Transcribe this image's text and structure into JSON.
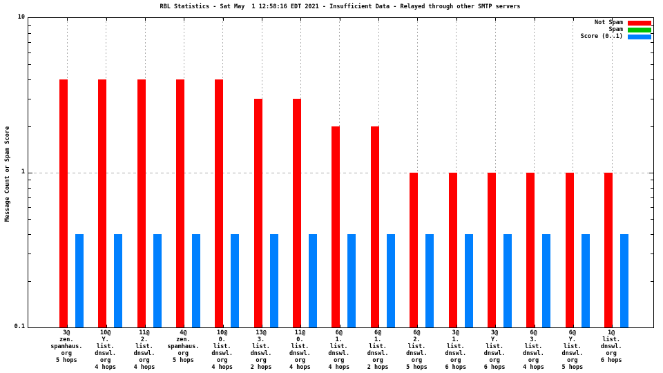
{
  "title": "RBL Statistics - Sat May  1 12:58:16 EDT 2021 - Insufficient Data - Relayed through other SMTP servers",
  "chart_data": {
    "type": "bar",
    "title": "RBL Statistics - Sat May  1 12:58:16 EDT 2021 - Insufficient Data - Relayed through other SMTP servers",
    "xlabel": "",
    "ylabel": "Message Count or Spam Score",
    "y_scale": "log",
    "ylim": [
      0.1,
      10
    ],
    "grid": true,
    "grid_color": "#aaaaaa",
    "legend_position": "top-right",
    "y_ticks": [
      {
        "label": "10",
        "value": 10
      },
      {
        "label": "1",
        "value": 1
      },
      {
        "label": "0.1",
        "value": 0.1
      }
    ],
    "categories": [
      [
        "3@",
        "zen.",
        "spamhaus.",
        "org",
        "5 hops"
      ],
      [
        "10@",
        "Y.",
        "list.",
        "dnswl.",
        "org",
        "4 hops"
      ],
      [
        "11@",
        "2.",
        "list.",
        "dnswl.",
        "org",
        "4 hops"
      ],
      [
        "4@",
        "zen.",
        "spamhaus.",
        "org",
        "5 hops"
      ],
      [
        "10@",
        "0.",
        "list.",
        "dnswl.",
        "org",
        "4 hops"
      ],
      [
        "13@",
        "3.",
        "list.",
        "dnswl.",
        "org",
        "2 hops"
      ],
      [
        "11@",
        "0.",
        "list.",
        "dnswl.",
        "org",
        "4 hops"
      ],
      [
        "6@",
        "1.",
        "list.",
        "dnswl.",
        "org",
        "4 hops"
      ],
      [
        "6@",
        "1.",
        "list.",
        "dnswl.",
        "org",
        "2 hops"
      ],
      [
        "6@",
        "2.",
        "list.",
        "dnswl.",
        "org",
        "5 hops"
      ],
      [
        "3@",
        "1.",
        "list.",
        "dnswl.",
        "org",
        "6 hops"
      ],
      [
        "3@",
        "Y.",
        "list.",
        "dnswl.",
        "org",
        "6 hops"
      ],
      [
        "6@",
        "3.",
        "list.",
        "dnswl.",
        "org",
        "4 hops"
      ],
      [
        "6@",
        "Y.",
        "list.",
        "dnswl.",
        "org",
        "5 hops"
      ],
      [
        "1@",
        "list.",
        "dnswl.",
        "org",
        "6 hops"
      ]
    ],
    "series": [
      {
        "name": "Not Spam",
        "color": "#ff0000",
        "values": [
          4,
          4,
          4,
          4,
          4,
          3,
          3,
          2,
          2,
          1,
          1,
          1,
          1,
          1,
          1
        ]
      },
      {
        "name": "Spam",
        "color": "#00c000",
        "values": [
          0,
          0,
          0,
          0,
          0,
          0,
          0,
          0,
          0,
          0,
          0,
          0,
          0,
          0,
          0
        ]
      },
      {
        "name": "Score (0..1)",
        "color": "#0080ff",
        "values": [
          0.4,
          0.4,
          0.4,
          0.4,
          0.4,
          0.4,
          0.4,
          0.4,
          0.4,
          0.4,
          0.4,
          0.4,
          0.4,
          0.4,
          0.4
        ]
      }
    ]
  }
}
